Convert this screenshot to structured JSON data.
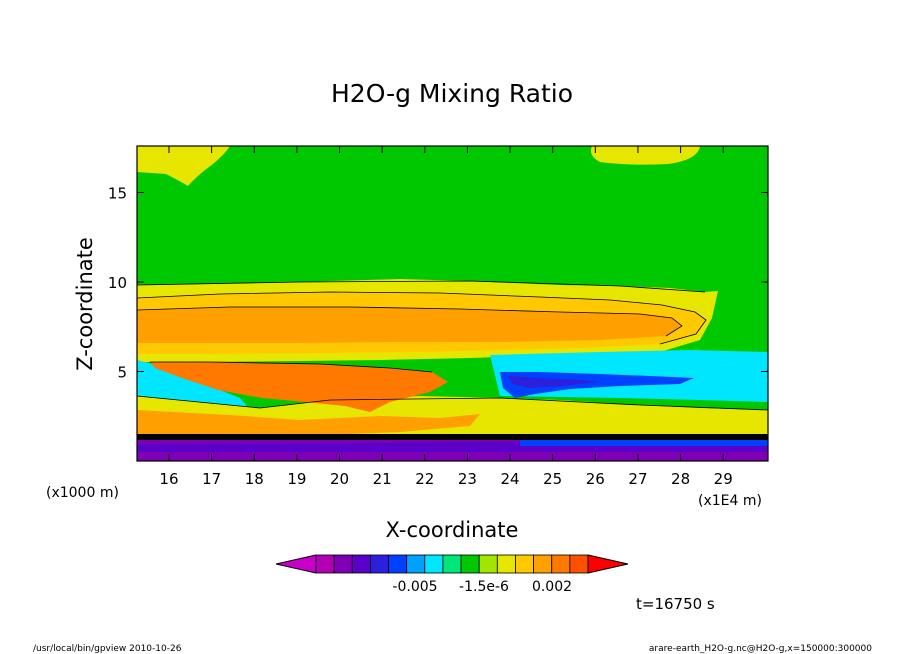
{
  "chart_data": {
    "type": "heatmap",
    "title": "H2O-g Mixing Ratio",
    "xlabel": "X-coordinate",
    "ylabel": "Z-coordinate",
    "x_unit_left": "(x1000 m)",
    "x_unit_right": "(x1E4 m)",
    "xlim": [
      15.25,
      30.05
    ],
    "ylim": [
      0,
      17.6
    ],
    "x_ticks": [
      16,
      17,
      18,
      19,
      20,
      21,
      22,
      23,
      24,
      25,
      26,
      27,
      28,
      29
    ],
    "y_ticks": [
      5,
      10,
      15
    ],
    "grid": false,
    "colorbar": {
      "colors": [
        "#c800c8",
        "#b400b4",
        "#7f00b4",
        "#5a00c8",
        "#2c20dc",
        "#0040ff",
        "#00a0ff",
        "#00e6ff",
        "#00e678",
        "#00c800",
        "#a0e600",
        "#e6e600",
        "#ffc800",
        "#ffa000",
        "#ff7800",
        "#ff5000",
        "#ff0000"
      ],
      "tick_labels": [
        "-0.005",
        "-1.5e-6",
        "0.002"
      ]
    }
  },
  "annotations": {
    "time": "t=16750 s",
    "footer_left": "/usr/local/bin/gpview   2010-10-26",
    "footer_right": "arare-earth_H2O-g.nc@H2O-g,x=150000:300000"
  }
}
